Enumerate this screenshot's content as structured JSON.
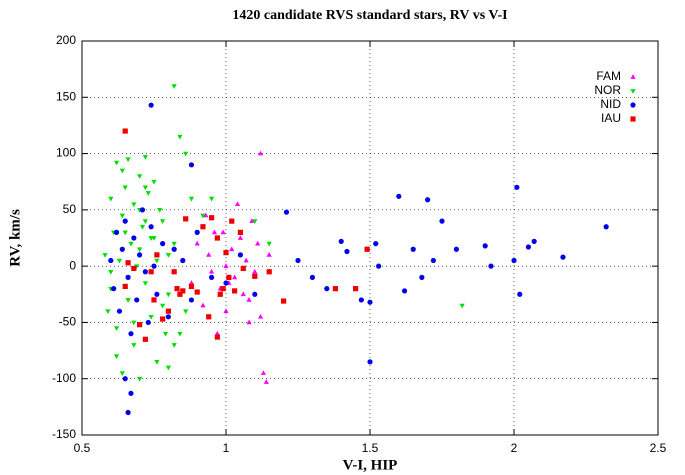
{
  "chart_data": {
    "type": "scatter",
    "title": "1420 candidate RVS standard stars, RV vs V-I",
    "x_label": "V-I, HIP",
    "y_label": "RV, km/s",
    "xlim": [
      0.5,
      2.5
    ],
    "xticks": [
      0.5,
      1,
      1.5,
      2,
      2.5
    ],
    "ylim": [
      -150,
      200
    ],
    "yticks": [
      -150,
      -100,
      -50,
      0,
      50,
      100,
      150,
      200
    ],
    "grid": true,
    "legend": "upper right",
    "series": [
      {
        "name": "FAM",
        "color": "#ff00ff",
        "marker": "triangle-up",
        "x": [
          0.85,
          0.88,
          0.9,
          0.92,
          0.94,
          0.95,
          0.96,
          0.98,
          1.0,
          1.0,
          1.02,
          1.03,
          1.05,
          1.06,
          1.07,
          1.08,
          1.09,
          1.1,
          1.11,
          1.12,
          1.13,
          1.14,
          1.15,
          0.97,
          1.04,
          0.93,
          1.08,
          1.01,
          0.99,
          1.12
        ],
        "values": [
          5,
          -15,
          20,
          -35,
          10,
          -5,
          30,
          -20,
          0,
          -40,
          15,
          -10,
          25,
          -25,
          5,
          -50,
          40,
          -5,
          20,
          100,
          -95,
          -103,
          10,
          -60,
          55,
          45,
          -30,
          -15,
          30,
          -45
        ]
      },
      {
        "name": "NOR",
        "color": "#00dd00",
        "marker": "triangle-down",
        "x": [
          0.58,
          0.59,
          0.6,
          0.6,
          0.61,
          0.62,
          0.62,
          0.63,
          0.64,
          0.64,
          0.65,
          0.66,
          0.66,
          0.67,
          0.68,
          0.68,
          0.69,
          0.7,
          0.7,
          0.71,
          0.72,
          0.72,
          0.73,
          0.74,
          0.74,
          0.75,
          0.76,
          0.77,
          0.78,
          0.79,
          0.8,
          0.8,
          0.82,
          0.84,
          0.86,
          0.88,
          0.9,
          0.62,
          0.66,
          0.7,
          0.75,
          0.8,
          0.64,
          0.68,
          0.72,
          0.76,
          0.6,
          0.65,
          0.7,
          0.78,
          0.82,
          0.86,
          0.92,
          0.95,
          1.1,
          1.15,
          1.82,
          0.82,
          0.84,
          0.72
        ],
        "values": [
          10,
          -40,
          60,
          -20,
          30,
          92,
          -55,
          5,
          -95,
          45,
          70,
          95,
          -30,
          20,
          -70,
          55,
          0,
          80,
          -100,
          35,
          97,
          -15,
          65,
          -45,
          25,
          75,
          -85,
          50,
          40,
          -60,
          10,
          -90,
          160,
          115,
          100,
          60,
          30,
          -80,
          -10,
          15,
          25,
          -25,
          85,
          -50,
          40,
          5,
          -5,
          30,
          50,
          -35,
          20,
          -40,
          45,
          60,
          40,
          20,
          -35,
          -70,
          -60,
          70
        ]
      },
      {
        "name": "NID",
        "color": "#0000ee",
        "marker": "circle",
        "x": [
          0.6,
          0.61,
          0.62,
          0.63,
          0.64,
          0.65,
          0.66,
          0.67,
          0.68,
          0.69,
          0.7,
          0.71,
          0.72,
          0.73,
          0.74,
          0.75,
          0.76,
          0.78,
          0.8,
          0.82,
          0.85,
          0.88,
          0.9,
          0.95,
          1.0,
          1.05,
          1.1,
          0.74,
          0.66,
          0.67,
          0.65,
          0.88,
          1.21,
          1.25,
          1.3,
          1.35,
          1.4,
          1.42,
          1.47,
          1.5,
          1.5,
          1.52,
          1.53,
          1.6,
          1.62,
          1.65,
          1.68,
          1.7,
          1.72,
          1.75,
          1.8,
          1.9,
          1.92,
          2.0,
          2.01,
          2.02,
          2.05,
          2.07,
          2.17,
          2.32
        ],
        "values": [
          5,
          -20,
          30,
          -40,
          15,
          40,
          -10,
          -60,
          25,
          -30,
          10,
          50,
          -5,
          -50,
          35,
          0,
          -25,
          20,
          -45,
          15,
          5,
          -30,
          30,
          -10,
          -15,
          10,
          -25,
          143,
          -130,
          -113,
          -100,
          90,
          48,
          5,
          -10,
          -20,
          22,
          13,
          -30,
          -85,
          -32,
          20,
          0,
          62,
          -22,
          15,
          -10,
          59,
          5,
          40,
          15,
          18,
          0,
          5,
          70,
          -25,
          17,
          22,
          8,
          35
        ]
      },
      {
        "name": "IAU",
        "color": "#ee0000",
        "marker": "square",
        "x": [
          0.65,
          0.65,
          0.66,
          0.68,
          0.7,
          0.72,
          0.74,
          0.76,
          0.78,
          0.8,
          0.82,
          0.83,
          0.84,
          0.85,
          0.86,
          0.88,
          0.9,
          0.92,
          0.94,
          0.95,
          0.97,
          0.98,
          0.99,
          1.0,
          1.01,
          1.02,
          1.03,
          1.05,
          1.06,
          1.1,
          1.15,
          1.2,
          1.38,
          1.45,
          1.49,
          0.97,
          0.75
        ],
        "values": [
          120,
          -18,
          3,
          -2,
          -52,
          -65,
          -5,
          10,
          -47,
          -40,
          -5,
          -20,
          -25,
          -22,
          42,
          -18,
          -23,
          35,
          -45,
          43,
          -63,
          -25,
          -20,
          12,
          -10,
          40,
          -22,
          30,
          -2,
          -9,
          -5,
          -31,
          -20,
          -20,
          15,
          25,
          -30
        ]
      }
    ]
  }
}
